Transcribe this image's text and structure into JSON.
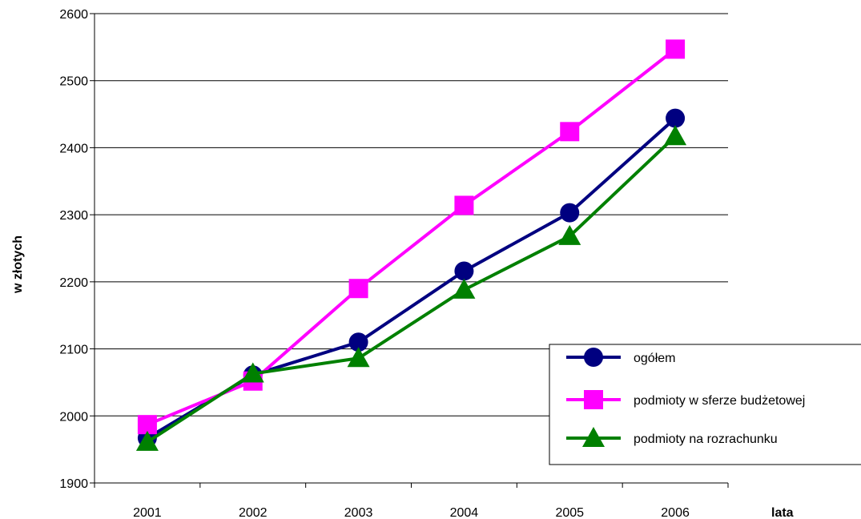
{
  "chart_data": {
    "type": "line",
    "title": "",
    "xlabel": "lata",
    "ylabel": "w złotych",
    "categories": [
      "2001",
      "2002",
      "2003",
      "2004",
      "2005",
      "2006"
    ],
    "ylim": [
      1900,
      2600
    ],
    "yticks": [
      1900,
      2000,
      2100,
      2200,
      2300,
      2400,
      2500,
      2600
    ],
    "grid": true,
    "legend_position": "bottom-right",
    "series": [
      {
        "name": "ogółem",
        "marker": "circle",
        "color": "#000080",
        "values": [
          1967,
          2061,
          2110,
          2216,
          2303,
          2444
        ]
      },
      {
        "name": "podmioty w sferze budżetowej",
        "marker": "square",
        "color": "#FF00FF",
        "values": [
          1987,
          2052,
          2190,
          2314,
          2424,
          2547
        ]
      },
      {
        "name": "podmioty na rozrachunku",
        "marker": "triangle",
        "color": "#008000",
        "values": [
          1961,
          2063,
          2086,
          2188,
          2268,
          2417
        ]
      }
    ]
  }
}
